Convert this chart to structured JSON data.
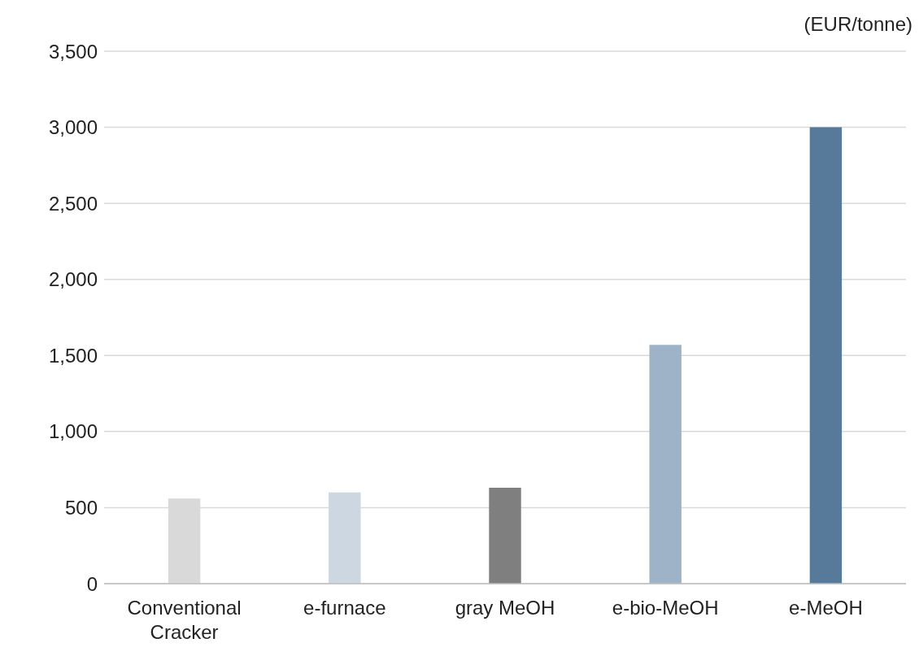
{
  "chart_data": {
    "type": "bar",
    "ylabel": "(EUR/tonne)",
    "categories": [
      "Conventional Cracker",
      "e-furnace",
      "gray MeOH",
      "e-bio-MeOH",
      "e-MeOH"
    ],
    "values": [
      560,
      600,
      630,
      1570,
      3000
    ],
    "colors": [
      "#d9d9d9",
      "#cdd7e1",
      "#7f7f7f",
      "#9fb3c8",
      "#587a9a"
    ],
    "ylim": [
      0,
      3500
    ],
    "yticks": [
      0,
      500,
      {
        "value": 1000,
        "label": "1,000"
      },
      {
        "value": 1500,
        "label": "1,500"
      },
      {
        "value": 2000,
        "label": "2,000"
      },
      {
        "value": 2500,
        "label": "2,500"
      },
      {
        "value": 3000,
        "label": "3,000"
      },
      {
        "value": 3500,
        "label": "3,500"
      }
    ],
    "grid": "y"
  }
}
